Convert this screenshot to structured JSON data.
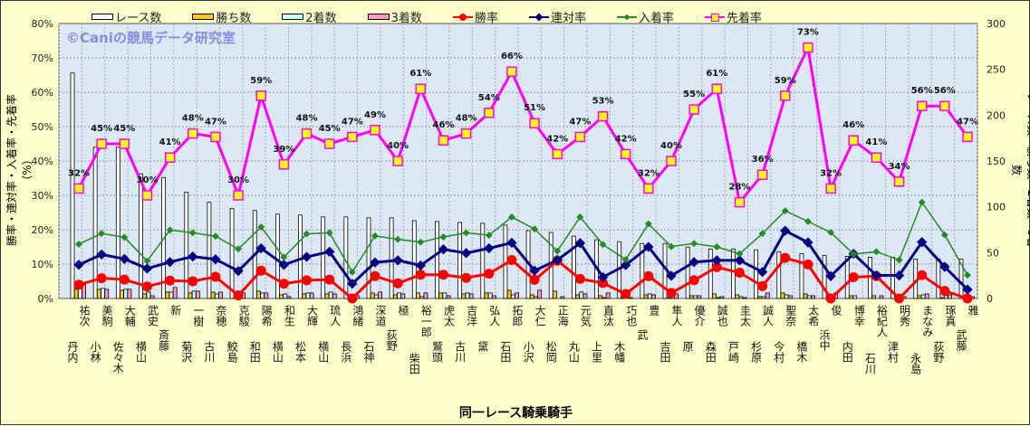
{
  "chart_data": {
    "type": "bar+line",
    "xlabel": "同一レース騎乗騎手",
    "ylabel_left": "勝率・連対率・入着率・先着率（%）",
    "ylabel_right": "レース数・勝ち数・2着数・3着数",
    "watermark": "©Caniの競馬データ研究室",
    "ylim_left": [
      0,
      80
    ],
    "ylim_right": [
      0,
      300
    ],
    "yticks_left": [
      "0%",
      "10%",
      "20%",
      "30%",
      "40%",
      "50%",
      "60%",
      "70%",
      "80%"
    ],
    "yticks_right": [
      "0",
      "50",
      "100",
      "150",
      "200",
      "250",
      "300"
    ],
    "grid": true,
    "legend_position": "top",
    "legend": [
      "レース数",
      "勝ち数",
      "2着数",
      "3着数",
      "勝率",
      "連対率",
      "入着率",
      "先着率"
    ],
    "colors": {
      "races": "#ffffff",
      "wins": "#ffcc00",
      "second": "#ccffff",
      "third": "#ff99cc",
      "win_rate": "#ff0000",
      "rentai_rate": "#000080",
      "fukusho_rate": "#228b22",
      "senchaku_rate": "#ff00ff",
      "senchaku_marker": "#ffff00",
      "plot_bg": "#dce8f6"
    },
    "categories": [
      {
        "surname": "丹内",
        "given": "祐次"
      },
      {
        "surname": "小林",
        "given": "美駒"
      },
      {
        "surname": "佐々木",
        "given": "大輔"
      },
      {
        "surname": "横山",
        "given": "武史"
      },
      {
        "surname": "斎藤",
        "given": "新"
      },
      {
        "surname": "菊沢",
        "given": "一樹"
      },
      {
        "surname": "古川",
        "given": "奈穂"
      },
      {
        "surname": "鮫島",
        "given": "克駿"
      },
      {
        "surname": "和田",
        "given": "陽希"
      },
      {
        "surname": "横山",
        "given": "和生"
      },
      {
        "surname": "松本",
        "given": "大輝"
      },
      {
        "surname": "横山",
        "given": "琉人"
      },
      {
        "surname": "長浜",
        "given": "鴻緒"
      },
      {
        "surname": "石神",
        "given": "深道"
      },
      {
        "surname": "荻野",
        "given": "極"
      },
      {
        "surname": "柴田",
        "given": "裕一郎"
      },
      {
        "surname": "鷲頭",
        "given": "虎太"
      },
      {
        "surname": "古川",
        "given": "吉洋"
      },
      {
        "surname": "黛",
        "given": "弘人"
      },
      {
        "surname": "石田",
        "given": "拓郎"
      },
      {
        "surname": "小沢",
        "given": "大仁"
      },
      {
        "surname": "松岡",
        "given": "正海"
      },
      {
        "surname": "丸山",
        "given": "元気"
      },
      {
        "surname": "上里",
        "given": "直汰"
      },
      {
        "surname": "木幡",
        "given": "巧也"
      },
      {
        "surname": "武",
        "given": "豊"
      },
      {
        "surname": "吉田",
        "given": "隼人"
      },
      {
        "surname": "原",
        "given": "優介"
      },
      {
        "surname": "森田",
        "given": "誠也"
      },
      {
        "surname": "戸崎",
        "given": "圭太"
      },
      {
        "surname": "杉原",
        "given": "誠人"
      },
      {
        "surname": "今村",
        "given": "聖奈"
      },
      {
        "surname": "橋木",
        "given": "太希"
      },
      {
        "surname": "浜中",
        "given": "俊"
      },
      {
        "surname": "内田",
        "given": "博幸"
      },
      {
        "surname": "石川",
        "given": "裕紀人"
      },
      {
        "surname": "津村",
        "given": "明秀"
      },
      {
        "surname": "永島",
        "given": "まなみ"
      },
      {
        "surname": "荻野",
        "given": "琢真"
      },
      {
        "surname": "武藤",
        "given": "雅"
      }
    ],
    "series": [
      {
        "name": "レース数",
        "axis": "right",
        "kind": "bar",
        "values": [
          246,
          165,
          165,
          136,
          132,
          116,
          105,
          98,
          96,
          92,
          91,
          89,
          89,
          88,
          88,
          85,
          84,
          83,
          82,
          80,
          74,
          72,
          68,
          64,
          62,
          60,
          60,
          56,
          54,
          54,
          53,
          51,
          49,
          47,
          46,
          45,
          45,
          43,
          43,
          43
        ]
      },
      {
        "name": "勝ち数",
        "axis": "right",
        "kind": "bar",
        "values": [
          10,
          10,
          9,
          5,
          7,
          6,
          7,
          1,
          8,
          4,
          5,
          5,
          0,
          6,
          4,
          6,
          6,
          5,
          6,
          9,
          4,
          8,
          4,
          3,
          1,
          4,
          1,
          3,
          5,
          4,
          2,
          6,
          5,
          0,
          3,
          3,
          0,
          3,
          1,
          0
        ]
      },
      {
        "name": "2着数",
        "axis": "right",
        "kind": "bar",
        "values": [
          14,
          11,
          10,
          7,
          7,
          8,
          5,
          7,
          6,
          5,
          6,
          7,
          4,
          4,
          6,
          2,
          6,
          6,
          6,
          4,
          2,
          0,
          7,
          1,
          5,
          5,
          3,
          3,
          1,
          2,
          2,
          4,
          3,
          3,
          3,
          0,
          3,
          4,
          3,
          1
        ]
      },
      {
        "name": "3着数",
        "axis": "right",
        "kind": "bar",
        "values": [
          15,
          10,
          10,
          3,
          12,
          8,
          7,
          6,
          6,
          2,
          6,
          5,
          3,
          7,
          5,
          6,
          3,
          5,
          3,
          6,
          9,
          2,
          5,
          6,
          1,
          4,
          5,
          3,
          2,
          1,
          6,
          3,
          3,
          6,
          0,
          3,
          2,
          5,
          4,
          2
        ]
      },
      {
        "name": "勝率",
        "axis": "left",
        "kind": "line",
        "values": [
          4.0,
          5.9,
          5.5,
          3.5,
          5.2,
          5.0,
          6.3,
          0.9,
          8.1,
          4.3,
          5.3,
          5.5,
          0,
          6.5,
          4.4,
          6.9,
          6.9,
          6.0,
          7.2,
          11.2,
          5.4,
          11.0,
          5.7,
          4.5,
          1.3,
          6.5,
          1.6,
          5.3,
          9.1,
          7.5,
          3.6,
          11.8,
          9.9,
          0,
          6.2,
          6.5,
          0,
          6.8,
          2.2,
          0
        ]
      },
      {
        "name": "連対率",
        "axis": "left",
        "kind": "line",
        "values": [
          9.8,
          12.8,
          11.5,
          8.7,
          10.6,
          12.2,
          11.4,
          8.0,
          14.6,
          9.8,
          12.1,
          13.6,
          4.3,
          10.5,
          11.1,
          9.6,
          14.3,
          13.2,
          14.6,
          16.2,
          8.1,
          11.2,
          16.1,
          6.2,
          9.7,
          15.0,
          6.6,
          10.6,
          11.1,
          11.1,
          7.7,
          19.7,
          16.3,
          6.5,
          13.0,
          6.7,
          6.7,
          16.4,
          9.2,
          2.6
        ]
      },
      {
        "name": "入着率",
        "axis": "left",
        "kind": "line",
        "values": [
          15.8,
          18.9,
          17.8,
          10.9,
          19.9,
          19.1,
          18.1,
          14.4,
          20.8,
          12.0,
          18.8,
          19.1,
          7.7,
          18.2,
          17.2,
          16.4,
          17.9,
          19.1,
          18.4,
          23.7,
          20.2,
          13.8,
          23.7,
          15.7,
          11.3,
          21.7,
          15.1,
          16.0,
          15.0,
          13.0,
          18.9,
          25.5,
          22.4,
          19.2,
          12.9,
          13.6,
          11.2,
          28.0,
          18.5,
          6.8
        ]
      },
      {
        "name": "先着率",
        "axis": "left",
        "kind": "line",
        "labeled": true,
        "values": [
          32,
          45,
          45,
          30,
          41,
          48,
          47,
          30,
          59,
          39,
          48,
          45,
          47,
          49,
          40,
          61,
          46,
          48,
          54,
          66,
          51,
          42,
          47,
          53,
          42,
          32,
          40,
          55,
          61,
          28,
          36,
          59,
          73,
          32,
          46,
          41,
          34,
          56,
          56,
          47
        ]
      }
    ]
  }
}
